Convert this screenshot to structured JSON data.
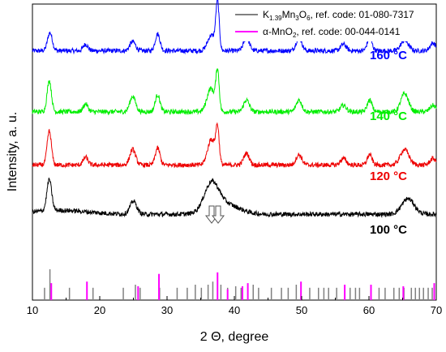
{
  "chart_data": {
    "type": "line",
    "xlabel": "2 Θ, degree",
    "ylabel": "Intensity, a. u.",
    "xlim": [
      10,
      70
    ],
    "xticks": [
      10,
      20,
      30,
      40,
      50,
      60,
      70
    ],
    "grid": false,
    "legend_position": "top-right",
    "legend": [
      {
        "text": "K1.39Mn3O6, ref. code: 01-080-7317",
        "color": "#808080"
      },
      {
        "text": "α-MnO2, ref. code: 00-044-0141",
        "color": "#ff00ff"
      }
    ],
    "series": [
      {
        "name": "160 °C",
        "color": "#0000ff",
        "baseline": 0.82,
        "peaks": [
          [
            12.6,
            0.07,
            0.5
          ],
          [
            17.9,
            0.025,
            0.5
          ],
          [
            24.9,
            0.035,
            0.6
          ],
          [
            28.6,
            0.065,
            0.5
          ],
          [
            36.6,
            0.06,
            0.8
          ],
          [
            37.5,
            0.18,
            0.35
          ],
          [
            41.8,
            0.05,
            0.6
          ],
          [
            49.6,
            0.05,
            0.6
          ],
          [
            56.2,
            0.025,
            0.6
          ],
          [
            60.1,
            0.05,
            0.5
          ],
          [
            65.3,
            0.04,
            0.8
          ],
          [
            69.5,
            0.03,
            0.6
          ]
        ]
      },
      {
        "name": "140 °C",
        "color": "#00ee00",
        "baseline": 0.585,
        "peaks": [
          [
            12.5,
            0.12,
            0.45
          ],
          [
            17.9,
            0.03,
            0.5
          ],
          [
            24.9,
            0.06,
            0.6
          ],
          [
            28.6,
            0.065,
            0.5
          ],
          [
            36.5,
            0.09,
            0.8
          ],
          [
            37.5,
            0.15,
            0.35
          ],
          [
            41.8,
            0.045,
            0.6
          ],
          [
            49.6,
            0.045,
            0.6
          ],
          [
            56.2,
            0.025,
            0.6
          ],
          [
            60.1,
            0.045,
            0.5
          ],
          [
            65.3,
            0.07,
            0.8
          ],
          [
            69.5,
            0.025,
            0.6
          ]
        ]
      },
      {
        "name": "120 °C",
        "color": "#ee0000",
        "baseline": 0.38,
        "peaks": [
          [
            12.5,
            0.13,
            0.45
          ],
          [
            17.9,
            0.03,
            0.5
          ],
          [
            24.9,
            0.06,
            0.6
          ],
          [
            28.6,
            0.065,
            0.5
          ],
          [
            36.6,
            0.1,
            0.8
          ],
          [
            37.5,
            0.13,
            0.35
          ],
          [
            41.8,
            0.045,
            0.6
          ],
          [
            49.6,
            0.04,
            0.6
          ],
          [
            56.2,
            0.025,
            0.6
          ],
          [
            60.1,
            0.04,
            0.5
          ],
          [
            65.3,
            0.06,
            0.9
          ],
          [
            69.5,
            0.025,
            0.6
          ]
        ]
      },
      {
        "name": "100 °C",
        "color": "#000000",
        "baseline": 0.19,
        "peaks": [
          [
            12.5,
            0.12,
            0.5
          ],
          [
            25.0,
            0.05,
            0.7
          ],
          [
            36.6,
            0.1,
            1.5
          ],
          [
            38.5,
            0.04,
            3.0
          ],
          [
            65.8,
            0.06,
            1.3
          ]
        ]
      }
    ],
    "reference_lines": {
      "K1.39Mn3O6": {
        "color": "#808080",
        "positions": [
          11.8,
          12.6,
          15.5,
          19.0,
          23.5,
          25.3,
          26.0,
          28.9,
          31.5,
          33.0,
          34.2,
          35.1,
          36.1,
          36.8,
          38.0,
          39.0,
          40.2,
          41.0,
          42.8,
          43.6,
          45.5,
          47.0,
          48.0,
          49.2,
          51.2,
          52.5,
          53.3,
          54.0,
          55.2,
          57.2,
          58.0,
          58.6,
          61.5,
          62.4,
          63.7,
          64.5,
          65.2,
          66.3,
          66.9,
          67.5,
          68.1,
          68.8,
          69.4
        ],
        "intensities": [
          0.4,
          1.0,
          0.4,
          0.4,
          0.4,
          0.5,
          0.4,
          0.4,
          0.4,
          0.4,
          0.5,
          0.4,
          0.5,
          0.6,
          0.5,
          0.4,
          0.45,
          0.4,
          0.5,
          0.4,
          0.4,
          0.4,
          0.4,
          0.5,
          0.4,
          0.4,
          0.4,
          0.4,
          0.4,
          0.4,
          0.4,
          0.4,
          0.4,
          0.4,
          0.4,
          0.4,
          0.4,
          0.4,
          0.4,
          0.4,
          0.4,
          0.4,
          0.4
        ]
      },
      "alpha-MnO2": {
        "color": "#ff00ff",
        "positions": [
          12.8,
          18.1,
          25.7,
          28.8,
          37.5,
          39.0,
          41.2,
          42.0,
          49.9,
          56.4,
          60.3,
          65.1,
          69.7
        ],
        "intensities": [
          0.55,
          0.6,
          0.45,
          0.85,
          0.9,
          0.35,
          0.45,
          0.55,
          0.6,
          0.5,
          0.5,
          0.45,
          0.55
        ]
      }
    },
    "annotations": [
      "arrows at ~36–37°, 100 °C"
    ]
  }
}
